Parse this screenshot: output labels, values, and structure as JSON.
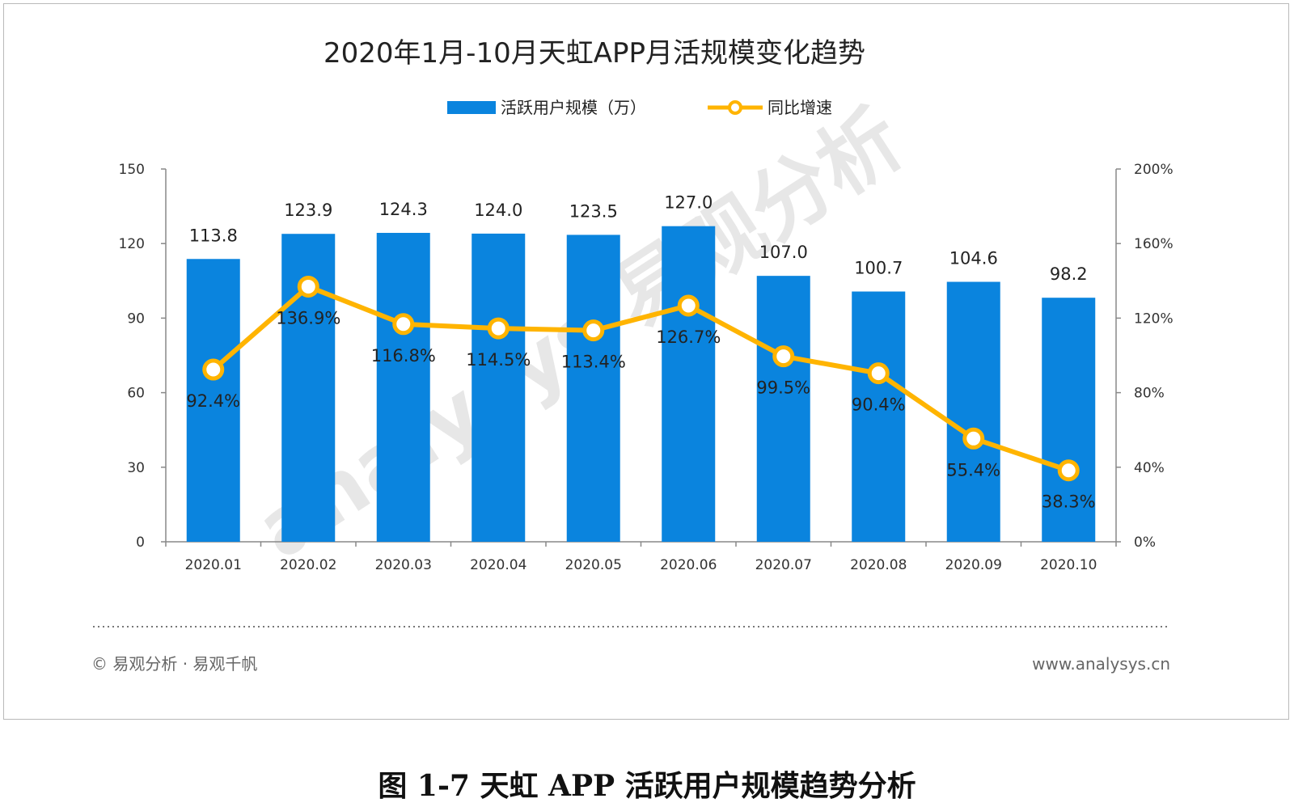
{
  "chart_data": {
    "type": "bar+line",
    "title": "2020年1月-10月天虹APP月活规模变化趋势",
    "categories": [
      "2020.01",
      "2020.02",
      "2020.03",
      "2020.04",
      "2020.05",
      "2020.06",
      "2020.07",
      "2020.08",
      "2020.09",
      "2020.10"
    ],
    "series": [
      {
        "name": "活跃用户规模（万）",
        "type": "bar",
        "axis": "left",
        "values": [
          113.8,
          123.9,
          124.3,
          124.0,
          123.5,
          127.0,
          107.0,
          100.7,
          104.6,
          98.2
        ],
        "labels": [
          "113.8",
          "123.9",
          "124.3",
          "124.0",
          "123.5",
          "127.0",
          "107.0",
          "100.7",
          "104.6",
          "98.2"
        ],
        "color": "#0a84de"
      },
      {
        "name": "同比增速",
        "type": "line",
        "axis": "right",
        "values": [
          92.4,
          136.9,
          116.8,
          114.5,
          113.4,
          126.7,
          99.5,
          90.4,
          55.4,
          38.3
        ],
        "labels": [
          "92.4%",
          "136.9%",
          "116.8%",
          "114.5%",
          "113.4%",
          "126.7%",
          "99.5%",
          "90.4%",
          "55.4%",
          "38.3%"
        ],
        "color": "#ffb400"
      }
    ],
    "y_left": {
      "range": [
        0,
        150
      ],
      "ticks": [
        "0",
        "30",
        "60",
        "90",
        "120",
        "150"
      ]
    },
    "y_right": {
      "range": [
        0,
        200
      ],
      "unit": "%",
      "ticks": [
        "0%",
        "40%",
        "80%",
        "120%",
        "160%",
        "200%"
      ]
    },
    "legend_position": "top-center",
    "grid": false
  },
  "watermark": "analysys 易观分析",
  "footer": {
    "copyright": "© 易观分析 · 易观千帆",
    "url": "www.analysys.cn"
  },
  "caption": "图 1-7 天虹 APP 活跃用户规模趋势分析"
}
